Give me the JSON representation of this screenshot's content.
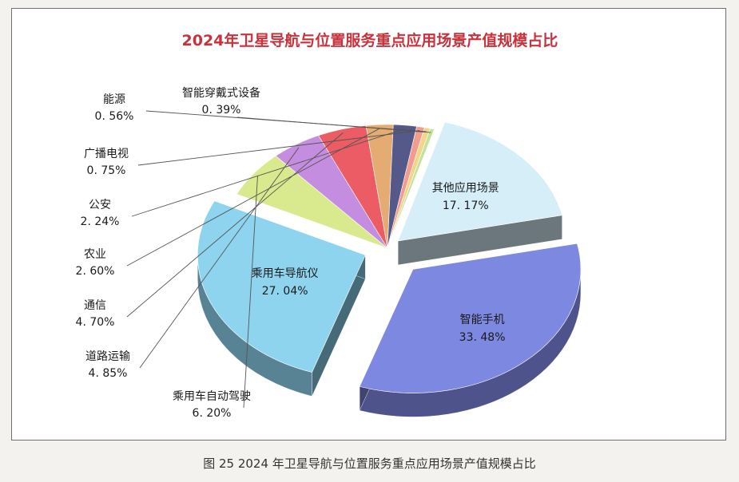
{
  "figure": {
    "caption": "图 25  2024 年卫星导航与位置服务重点应用场景产值规模占比"
  },
  "chart_data": {
    "type": "pie",
    "title": "2024年卫星导航与位置服务重点应用场景产值规模占比",
    "exploded_3d": true,
    "slices": [
      {
        "label": "智能手机",
        "value_text": "33. 48%",
        "value": 33.48,
        "color": "#7d88e0"
      },
      {
        "label": "乘用车导航仪",
        "value_text": "27. 04%",
        "value": 27.04,
        "color": "#8ed4ef"
      },
      {
        "label": "乘用车自动驾驶",
        "value_text": "6. 20%",
        "value": 6.2,
        "color": "#d9ea8e"
      },
      {
        "label": "道路运输",
        "value_text": "4. 85%",
        "value": 4.85,
        "color": "#c58de0"
      },
      {
        "label": "通信",
        "value_text": "4. 70%",
        "value": 4.7,
        "color": "#ec5c64"
      },
      {
        "label": "农业",
        "value_text": "2. 60%",
        "value": 2.6,
        "color": "#e4ac72"
      },
      {
        "label": "公安",
        "value_text": "2. 24%",
        "value": 2.24,
        "color": "#55598a"
      },
      {
        "label": "广播电视",
        "value_text": "0. 75%",
        "value": 0.75,
        "color": "#f19c8e"
      },
      {
        "label": "能源",
        "value_text": "0. 56%",
        "value": 0.56,
        "color": "#f2d58b"
      },
      {
        "label": "智能穿戴式设备",
        "value_text": "0. 39%",
        "value": 0.39,
        "color": "#bfe39a"
      },
      {
        "label": "其他应用场景",
        "value_text": "17. 17%",
        "value": 17.17,
        "color": "#d5eef7"
      }
    ]
  }
}
